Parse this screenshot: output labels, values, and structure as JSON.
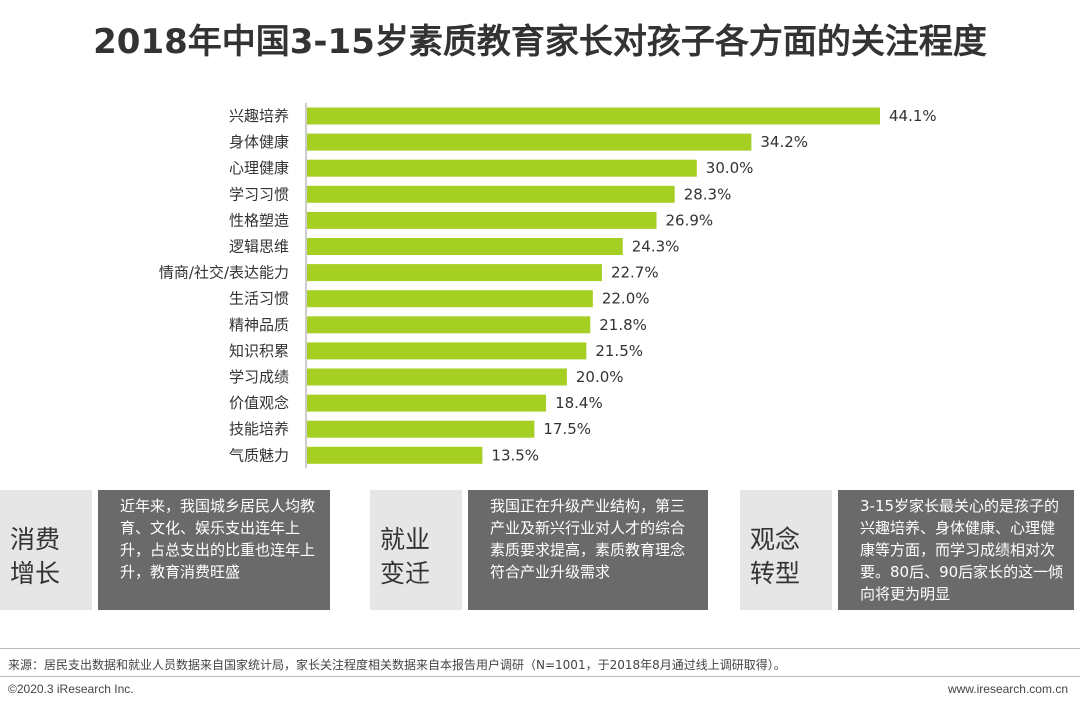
{
  "title": "2018年中国3-15岁素质教育家长对孩子各方面的关注程度",
  "chart_data": {
    "type": "bar",
    "orientation": "horizontal",
    "title": "2018年中国3-15岁素质教育家长对孩子各方面的关注程度",
    "categories": [
      "兴趣培养",
      "身体健康",
      "心理健康",
      "学习习惯",
      "性格塑造",
      "逻辑思维",
      "情商/社交/表达能力",
      "生活习惯",
      "精神品质",
      "知识积累",
      "学习成绩",
      "价值观念",
      "技能培养",
      "气质魅力"
    ],
    "values": [
      44.1,
      34.2,
      30.0,
      28.3,
      26.9,
      24.3,
      22.7,
      22.0,
      21.8,
      21.5,
      20.0,
      18.4,
      17.5,
      13.5
    ],
    "labels": [
      "44.1%",
      "34.2%",
      "30.0%",
      "28.3%",
      "26.9%",
      "24.3%",
      "22.7%",
      "22.0%",
      "21.8%",
      "21.5%",
      "20.0%",
      "18.4%",
      "17.5%",
      "13.5%"
    ],
    "unit": "%",
    "xlim": [
      0,
      44.1
    ],
    "bar_color": "#a6cf24"
  },
  "cards": [
    {
      "heading": "消费增长",
      "heading_lines": [
        "消费",
        "增长"
      ],
      "text": "近年来，我国城乡居民人均教育、文化、娱乐支出连年上升，占总支出的比重也连年上升，教育消费旺盛"
    },
    {
      "heading": "就业变迁",
      "heading_lines": [
        "就业",
        "变迁"
      ],
      "text": "我国正在升级产业结构，第三产业及新兴行业对人才的综合素质要求提高，素质教育理念符合产业升级需求"
    },
    {
      "heading": "观念转型",
      "heading_lines": [
        "观念",
        "转型"
      ],
      "text": "3-15岁家长最关心的是孩子的兴趣培养、身体健康、心理健康等方面，而学习成绩相对次要。80后、90后家长的这一倾向将更为明显"
    }
  ],
  "footer": {
    "source": "来源：居民支出数据和就业人员数据来自国家统计局，家长关注程度相关数据来自本报告用户调研（N=1001，于2018年8月通过线上调研取得）。",
    "copyright": "©2020.3 iResearch Inc.",
    "website": "www.iresearch.com.cn"
  },
  "colors": {
    "bar": "#a6cf24",
    "card_dark": "#6a6a6a",
    "card_light": "#e6e6e6"
  }
}
